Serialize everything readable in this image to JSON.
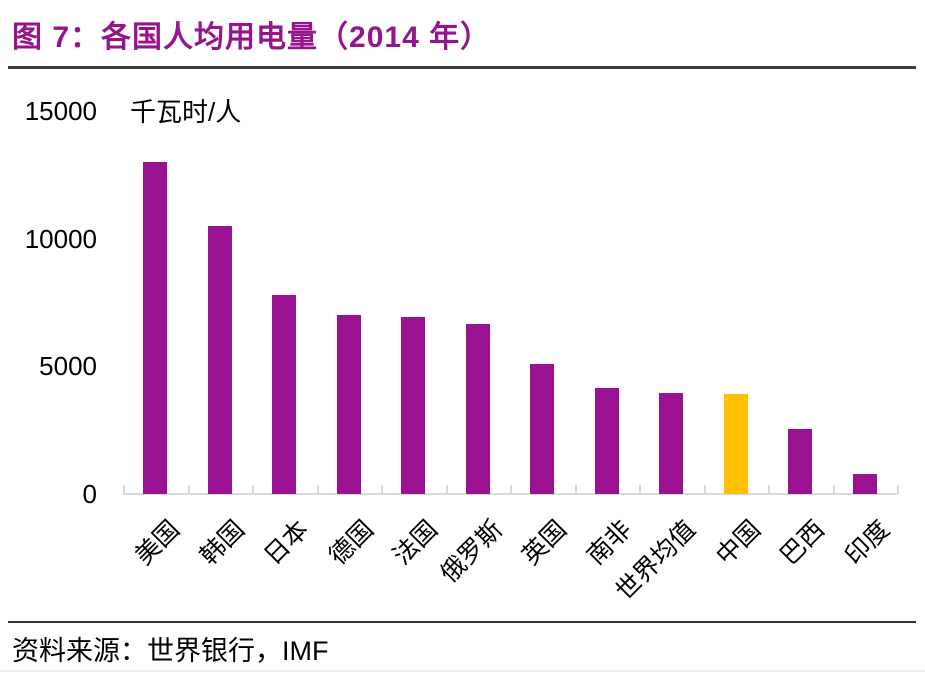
{
  "page": {
    "source_label": "资料来源：世界银行，IMF"
  },
  "chart_data": {
    "type": "bar",
    "title": "图 7：各国人均用电量（2014 年）",
    "unit_label": "千瓦时/人",
    "categories": [
      "美国",
      "韩国",
      "日本",
      "德国",
      "法国",
      "俄罗斯",
      "英国",
      "南非",
      "世界均值",
      "中国",
      "巴西",
      "印度"
    ],
    "values": [
      13000,
      10500,
      7800,
      7000,
      6950,
      6650,
      5100,
      4150,
      3950,
      3900,
      2550,
      800
    ],
    "ylabel": "千瓦时/人",
    "xlabel": "",
    "ylim": [
      0,
      15000
    ],
    "yticks": [
      0,
      5000,
      10000,
      15000
    ],
    "grid": false,
    "legend_position": "none",
    "bar_color_default": "#9A1192",
    "highlight_category": "中国",
    "highlight_color": "#FFC000",
    "title_color": "#96148C",
    "axis_color": "#D9D9D9"
  }
}
